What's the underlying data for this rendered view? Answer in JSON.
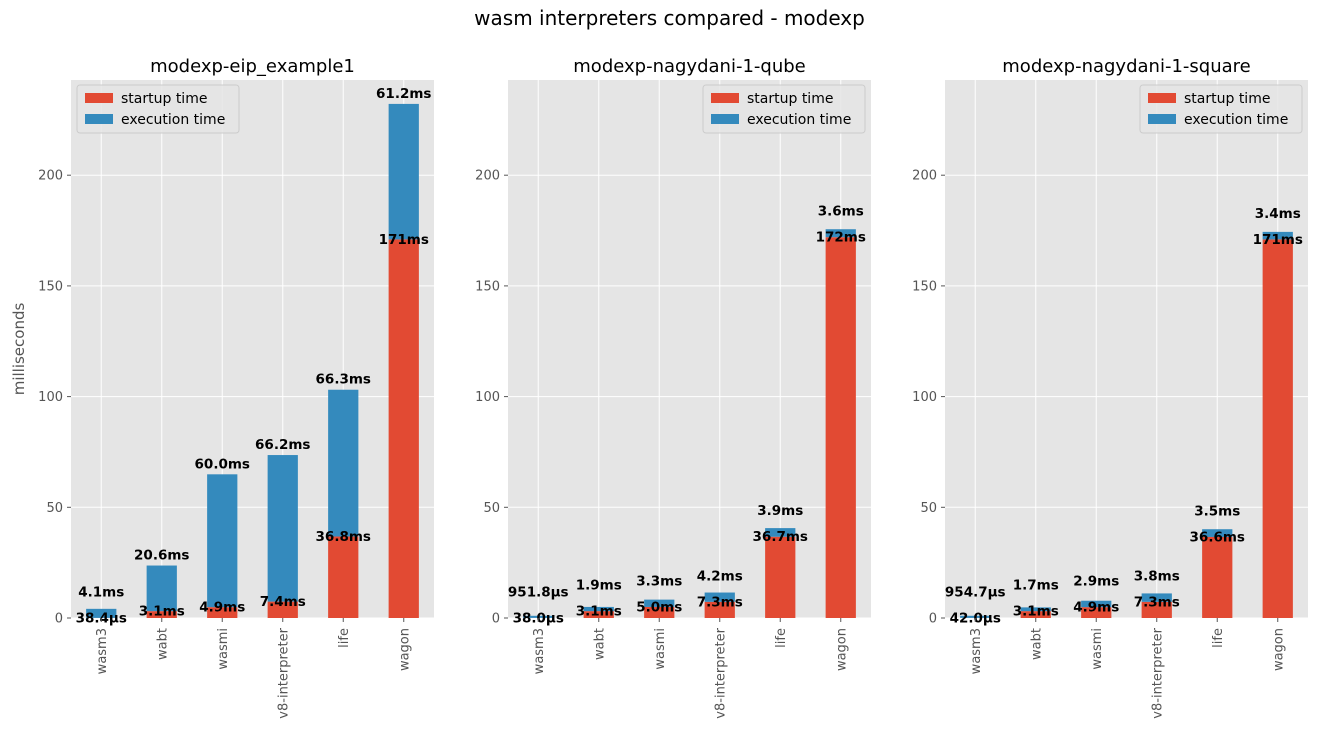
{
  "suptitle": "wasm interpreters compared - modexp",
  "colors": {
    "startup": "#E24A33",
    "execution": "#348ABD",
    "background": "#E5E5E5",
    "grid": "#FFFFFF",
    "tick_text": "#555555"
  },
  "chart_data": [
    {
      "type": "bar",
      "stacked": true,
      "title": "modexp-eip_example1",
      "ylabel": "milliseconds",
      "xlabel": "",
      "ylim": [
        0,
        243
      ],
      "yticks": [
        0,
        50,
        100,
        150,
        200
      ],
      "grid": true,
      "legend": "top-left",
      "categories": [
        "wasm3",
        "wabt",
        "wasmi",
        "v8-interpreter",
        "life",
        "wagon"
      ],
      "series": [
        {
          "name": "startup time",
          "values": [
            0.0384,
            3.1,
            4.9,
            7.4,
            36.8,
            171
          ],
          "labels": [
            "38.4µs",
            "3.1ms",
            "4.9ms",
            "7.4ms",
            "36.8ms",
            "171ms"
          ]
        },
        {
          "name": "execution time",
          "values": [
            4.1,
            20.6,
            60.0,
            66.2,
            66.3,
            61.2
          ],
          "labels": [
            "4.1ms",
            "20.6ms",
            "60.0ms",
            "66.2ms",
            "66.3ms",
            "61.2ms"
          ]
        }
      ]
    },
    {
      "type": "bar",
      "stacked": true,
      "title": "modexp-nagydani-1-qube",
      "ylabel": "",
      "xlabel": "",
      "ylim": [
        0,
        243
      ],
      "yticks": [
        0,
        50,
        100,
        150,
        200
      ],
      "grid": true,
      "legend": "top-right",
      "categories": [
        "wasm3",
        "wabt",
        "wasmi",
        "v8-interpreter",
        "life",
        "wagon"
      ],
      "series": [
        {
          "name": "startup time",
          "values": [
            0.038,
            3.1,
            5.0,
            7.3,
            36.7,
            172
          ],
          "labels": [
            "38.0µs",
            "3.1ms",
            "5.0ms",
            "7.3ms",
            "36.7ms",
            "172ms"
          ]
        },
        {
          "name": "execution time",
          "values": [
            0.9518,
            1.9,
            3.3,
            4.2,
            3.9,
            3.6
          ],
          "labels": [
            "951.8µs",
            "1.9ms",
            "3.3ms",
            "4.2ms",
            "3.9ms",
            "3.6ms"
          ]
        }
      ]
    },
    {
      "type": "bar",
      "stacked": true,
      "title": "modexp-nagydani-1-square",
      "ylabel": "",
      "xlabel": "",
      "ylim": [
        0,
        243
      ],
      "yticks": [
        0,
        50,
        100,
        150,
        200
      ],
      "grid": true,
      "legend": "top-right",
      "categories": [
        "wasm3",
        "wabt",
        "wasmi",
        "v8-interpreter",
        "life",
        "wagon"
      ],
      "series": [
        {
          "name": "startup time",
          "values": [
            0.042,
            3.1,
            4.9,
            7.3,
            36.6,
            171
          ],
          "labels": [
            "42.0µs",
            "3.1ms",
            "4.9ms",
            "7.3ms",
            "36.6ms",
            "171ms"
          ]
        },
        {
          "name": "execution time",
          "values": [
            0.9547,
            1.7,
            2.9,
            3.8,
            3.5,
            3.4
          ],
          "labels": [
            "954.7µs",
            "1.7ms",
            "2.9ms",
            "3.8ms",
            "3.5ms",
            "3.4ms"
          ]
        }
      ]
    }
  ]
}
